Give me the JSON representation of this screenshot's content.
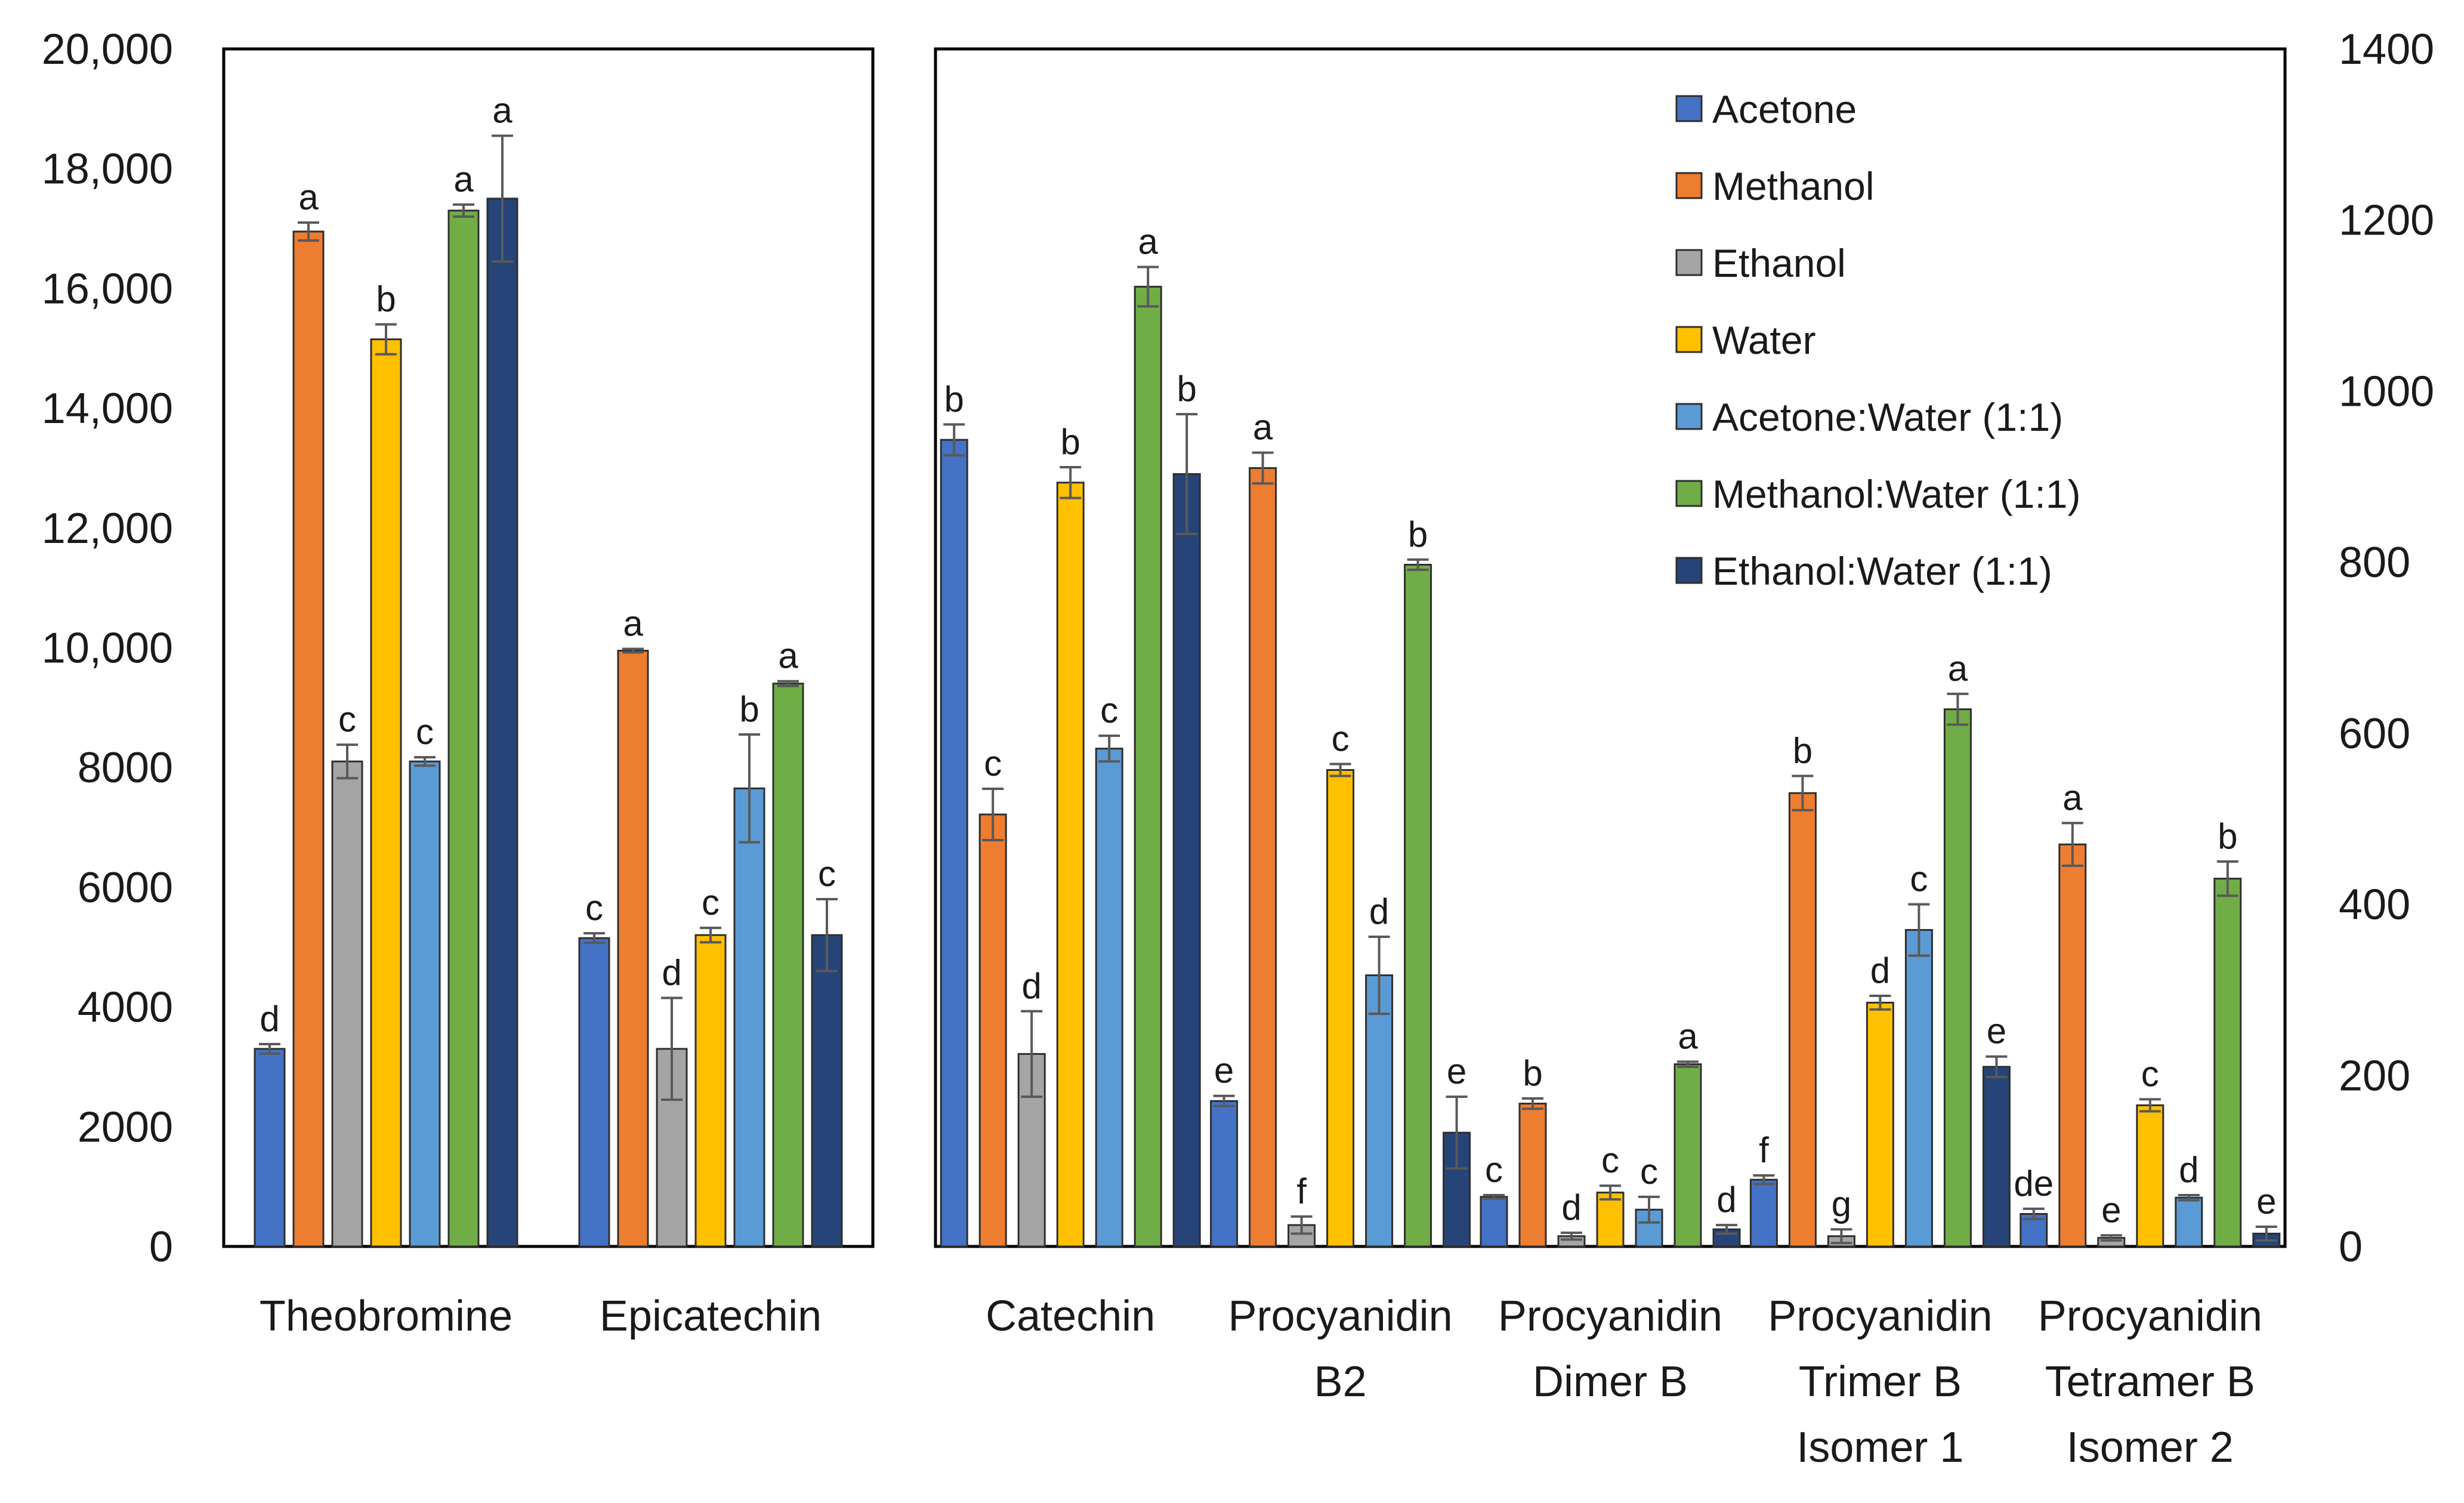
{
  "chart_data": [
    {
      "type": "bar",
      "panel": "left",
      "title": "",
      "xlabel": "",
      "ylabel": "",
      "ylim": [
        0,
        20000
      ],
      "yticks": [
        0,
        2000,
        4000,
        6000,
        8000,
        10000,
        12000,
        14000,
        16000,
        18000,
        20000
      ],
      "ytick_labels": [
        "0",
        "2000",
        "4000",
        "6000",
        "8000",
        "10,000",
        "12,000",
        "14,000",
        "16,000",
        "18,000",
        "20,000"
      ],
      "categories": [
        {
          "lines": [
            "Theobromine"
          ]
        },
        {
          "lines": [
            "Epicatechin"
          ]
        }
      ],
      "series": [
        {
          "name": "Acetone",
          "values": [
            3300,
            5150
          ],
          "errors": [
            80,
            80
          ],
          "letters": [
            "d",
            "c"
          ]
        },
        {
          "name": "Methanol",
          "values": [
            16950,
            9950
          ],
          "errors": [
            150,
            30
          ],
          "letters": [
            "a",
            "a"
          ]
        },
        {
          "name": "Ethanol",
          "values": [
            8100,
            3300
          ],
          "errors": [
            280,
            850
          ],
          "letters": [
            "c",
            "d"
          ]
        },
        {
          "name": "Water",
          "values": [
            15150,
            5200
          ],
          "errors": [
            250,
            120
          ],
          "letters": [
            "b",
            "c"
          ]
        },
        {
          "name": "Acetone:Water (1:1)",
          "values": [
            8100,
            7650
          ],
          "errors": [
            70,
            900
          ],
          "letters": [
            "c",
            "b"
          ]
        },
        {
          "name": "Methanol:Water (1:1)",
          "values": [
            17300,
            9400
          ],
          "errors": [
            100,
            40
          ],
          "letters": [
            "a",
            "a"
          ]
        },
        {
          "name": "Ethanol:Water (1:1)",
          "values": [
            17500,
            5200
          ],
          "errors": [
            1050,
            600
          ],
          "letters": [
            "a",
            "c"
          ]
        }
      ]
    },
    {
      "type": "bar",
      "panel": "right",
      "title": "",
      "xlabel": "",
      "ylabel": "",
      "ylim": [
        0,
        1400
      ],
      "yticks": [
        0,
        200,
        400,
        600,
        800,
        1000,
        1200,
        1400
      ],
      "ytick_labels": [
        "0",
        "200",
        "400",
        "600",
        "800",
        "1000",
        "1200",
        "1400"
      ],
      "categories": [
        {
          "lines": [
            "Catechin"
          ]
        },
        {
          "lines": [
            "Procyanidin",
            "B2"
          ]
        },
        {
          "lines": [
            "Procyanidin",
            "Dimer B"
          ]
        },
        {
          "lines": [
            "Procyanidin",
            "Trimer B",
            "Isomer 1"
          ]
        },
        {
          "lines": [
            "Procyanidin",
            "Tetramer B",
            "Isomer 2"
          ]
        }
      ],
      "series": [
        {
          "name": "Acetone",
          "values": [
            943,
            170,
            58,
            78,
            38
          ],
          "errors": [
            18,
            6,
            2,
            5,
            6
          ],
          "letters": [
            "b",
            "e",
            "c",
            "f",
            "de"
          ]
        },
        {
          "name": "Methanol",
          "values": [
            505,
            910,
            167,
            530,
            470
          ],
          "errors": [
            30,
            18,
            6,
            20,
            25
          ],
          "letters": [
            "c",
            "a",
            "b",
            "b",
            "a"
          ]
        },
        {
          "name": "Ethanol",
          "values": [
            225,
            25,
            12,
            12,
            10
          ],
          "errors": [
            50,
            10,
            4,
            8,
            3
          ],
          "letters": [
            "d",
            "f",
            "d",
            "g",
            "e"
          ]
        },
        {
          "name": "Water",
          "values": [
            893,
            557,
            63,
            285,
            165
          ],
          "errors": [
            18,
            7,
            8,
            8,
            7
          ],
          "letters": [
            "b",
            "c",
            "c",
            "d",
            "c"
          ]
        },
        {
          "name": "Acetone:Water (1:1)",
          "values": [
            582,
            317,
            43,
            370,
            57
          ],
          "errors": [
            15,
            45,
            15,
            30,
            3
          ],
          "letters": [
            "c",
            "d",
            "c",
            "c",
            "d"
          ]
        },
        {
          "name": "Methanol:Water (1:1)",
          "values": [
            1122,
            797,
            213,
            628,
            430
          ],
          "errors": [
            23,
            6,
            3,
            18,
            20
          ],
          "letters": [
            "a",
            "b",
            "a",
            "a",
            "b"
          ]
        },
        {
          "name": "Ethanol:Water (1:1)",
          "values": [
            903,
            133,
            20,
            210,
            15
          ],
          "errors": [
            70,
            42,
            5,
            12,
            8
          ],
          "letters": [
            "b",
            "e",
            "d",
            "e",
            "e"
          ]
        }
      ]
    }
  ],
  "colors": {
    "Acetone": "#4472C4",
    "Methanol": "#ED7D31",
    "Ethanol": "#A5A5A5",
    "Water": "#FFC000",
    "Acetone:Water (1:1)": "#5B9BD5",
    "Methanol:Water (1:1)": "#70AD47",
    "Ethanol:Water (1:1)": "#264478",
    "axis": "#000000",
    "error_bar": "#595959"
  },
  "legend": {
    "placement": "top-right",
    "entries": [
      "Acetone",
      "Methanol",
      "Ethanol",
      "Water",
      "Acetone:Water (1:1)",
      "Methanol:Water (1:1)",
      "Ethanol:Water (1:1)"
    ]
  }
}
